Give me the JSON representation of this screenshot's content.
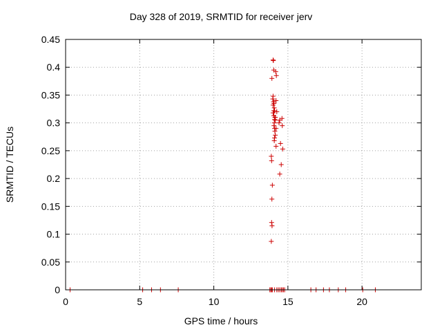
{
  "chart_data": {
    "type": "scatter",
    "title": "Day 328 of 2019, SRMTID for receiver jerv",
    "xlabel": "GPS time / hours",
    "ylabel": "SRMTID / TECUs",
    "xlim": [
      0,
      24
    ],
    "ylim": [
      0,
      0.45
    ],
    "xticks": [
      "0",
      "5",
      "10",
      "15",
      "20"
    ],
    "xtick_values": [
      0,
      5,
      10,
      15,
      20
    ],
    "yticks": [
      "0",
      "0.05",
      "0.1",
      "0.15",
      "0.2",
      "0.25",
      "0.3",
      "0.35",
      "0.4",
      "0.45"
    ],
    "ytick_values": [
      0,
      0.05,
      0.1,
      0.15,
      0.2,
      0.25,
      0.3,
      0.35,
      0.4,
      0.45
    ],
    "grid": true,
    "color": "#cc0000",
    "series": [
      {
        "x": [
          0.3,
          5.2,
          5.8,
          6.4,
          7.6,
          13.78,
          13.85,
          13.9,
          13.95,
          14.1,
          14.25,
          14.35,
          14.45,
          14.55,
          14.62,
          14.7,
          14.78,
          16.55,
          16.9,
          17.4,
          17.8,
          18.4,
          18.9,
          20.05,
          20.9,
          13.88,
          13.93,
          13.9,
          13.92,
          13.95,
          13.9,
          13.88,
          13.92,
          14.0,
          14.02,
          14.05,
          14.0,
          13.98,
          14.03,
          14.06,
          14.0,
          14.08,
          14.05,
          14.1,
          14.0,
          14.05,
          14.12,
          14.1,
          14.15,
          14.08,
          14.06,
          14.1,
          14.12,
          14.15,
          14.1,
          14.08,
          14.2,
          14.18,
          14.22,
          14.2,
          14.25,
          14.15,
          14.2,
          14.45,
          14.5,
          14.55,
          14.45,
          14.4,
          14.6,
          14.62,
          14.65
        ],
        "y": [
          0,
          0,
          0,
          0,
          0,
          0,
          0,
          0,
          0,
          0,
          0,
          0,
          0,
          0,
          0,
          0,
          0,
          0,
          0,
          0,
          0,
          0,
          0,
          0,
          0,
          0.087,
          0.115,
          0.121,
          0.163,
          0.188,
          0.232,
          0.24,
          0.38,
          0.413,
          0.412,
          0.395,
          0.348,
          0.343,
          0.338,
          0.335,
          0.332,
          0.327,
          0.322,
          0.322,
          0.318,
          0.313,
          0.31,
          0.306,
          0.305,
          0.3,
          0.295,
          0.29,
          0.285,
          0.278,
          0.273,
          0.268,
          0.258,
          0.392,
          0.385,
          0.34,
          0.32,
          0.31,
          0.29,
          0.305,
          0.263,
          0.225,
          0.208,
          0.3,
          0.308,
          0.295,
          0.253
        ]
      }
    ]
  }
}
